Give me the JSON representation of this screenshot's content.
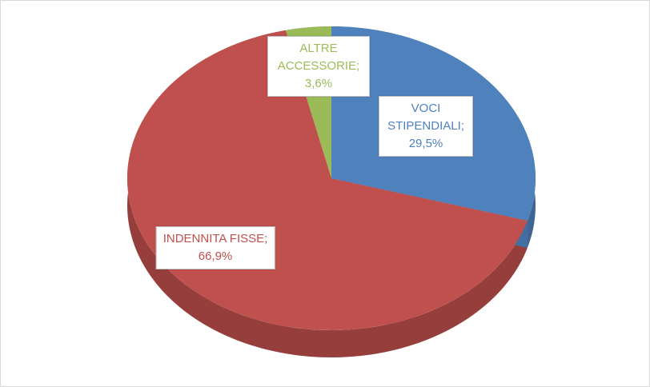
{
  "chart_data": {
    "type": "pie",
    "categories": [
      "VOCI STIPENDIALI;",
      "INDENNITA FISSE;",
      "ALTRE ACCESSORIE;"
    ],
    "values": [
      29.5,
      66.9,
      3.6
    ],
    "value_labels": [
      "29,5%",
      "66,9%",
      "3,6%"
    ],
    "colors": [
      "#4f81bd",
      "#c0504d",
      "#9bbb59"
    ]
  }
}
